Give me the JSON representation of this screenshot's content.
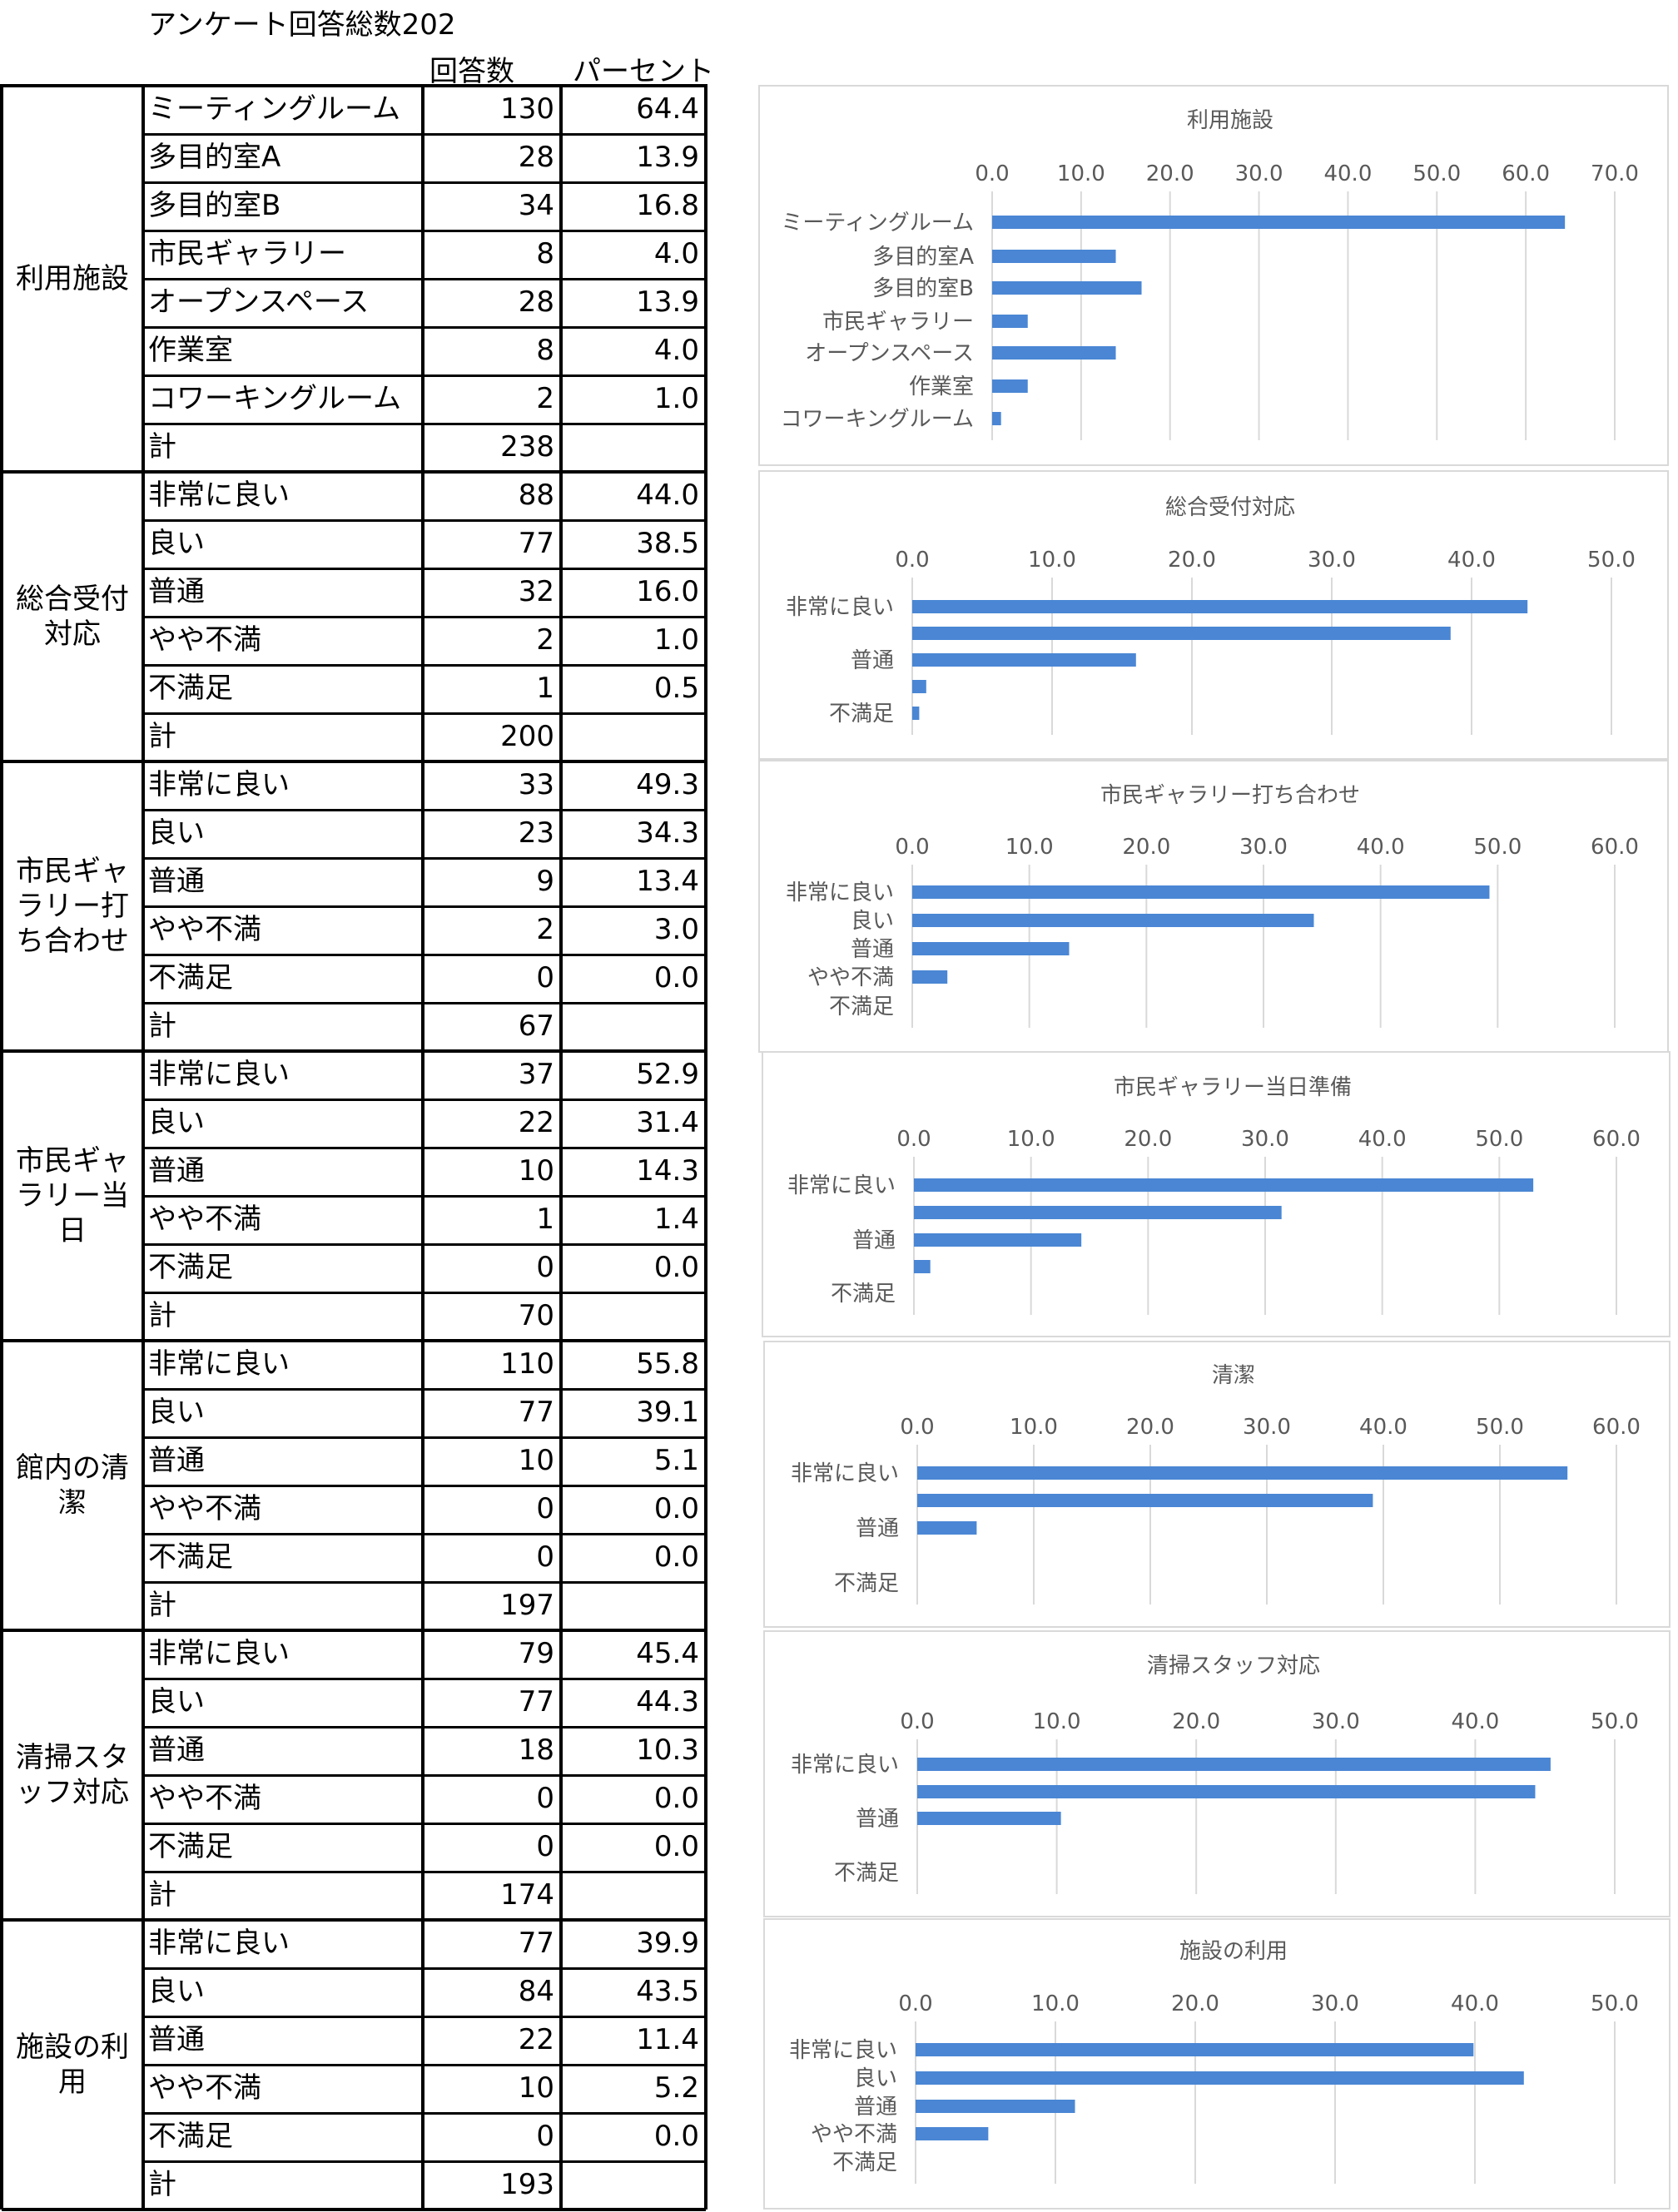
{
  "title": "アンケート回答総数202",
  "table_headers": {
    "count": "回答数",
    "percent": "パーセント"
  },
  "sections": [
    {
      "name": "利用施設",
      "total_label": "計",
      "total": "238",
      "rows": [
        {
          "label": "ミーティングルーム",
          "count": "130",
          "pct": "64.4"
        },
        {
          "label": "多目的室A",
          "count": "28",
          "pct": "13.9"
        },
        {
          "label": "多目的室B",
          "count": "34",
          "pct": "16.8"
        },
        {
          "label": "市民ギャラリー",
          "count": "8",
          "pct": "4.0"
        },
        {
          "label": "オープンスペース",
          "count": "28",
          "pct": "13.9"
        },
        {
          "label": "作業室",
          "count": "8",
          "pct": "4.0"
        },
        {
          "label": "コワーキングルーム",
          "count": "2",
          "pct": "1.0"
        }
      ]
    },
    {
      "name": "総合受付対応",
      "total_label": "計",
      "total": "200",
      "rows": [
        {
          "label": "非常に良い",
          "count": "88",
          "pct": "44.0"
        },
        {
          "label": "良い",
          "count": "77",
          "pct": "38.5"
        },
        {
          "label": "普通",
          "count": "32",
          "pct": "16.0"
        },
        {
          "label": "やや不満",
          "count": "2",
          "pct": "1.0"
        },
        {
          "label": "不満足",
          "count": "1",
          "pct": "0.5"
        }
      ]
    },
    {
      "name": "市民ギャラリー打ち合わせ",
      "total_label": "計",
      "total": "67",
      "rows": [
        {
          "label": "非常に良い",
          "count": "33",
          "pct": "49.3"
        },
        {
          "label": "良い",
          "count": "23",
          "pct": "34.3"
        },
        {
          "label": "普通",
          "count": "9",
          "pct": "13.4"
        },
        {
          "label": "やや不満",
          "count": "2",
          "pct": "3.0"
        },
        {
          "label": "不満足",
          "count": "0",
          "pct": "0.0"
        }
      ]
    },
    {
      "name": "市民ギャラリー当日",
      "total_label": "計",
      "total": "70",
      "rows": [
        {
          "label": "非常に良い",
          "count": "37",
          "pct": "52.9"
        },
        {
          "label": "良い",
          "count": "22",
          "pct": "31.4"
        },
        {
          "label": "普通",
          "count": "10",
          "pct": "14.3"
        },
        {
          "label": "やや不満",
          "count": "1",
          "pct": "1.4"
        },
        {
          "label": "不満足",
          "count": "0",
          "pct": "0.0"
        }
      ]
    },
    {
      "name": "館内の清潔",
      "total_label": "計",
      "total": "197",
      "rows": [
        {
          "label": "非常に良い",
          "count": "110",
          "pct": "55.8"
        },
        {
          "label": "良い",
          "count": "77",
          "pct": "39.1"
        },
        {
          "label": "普通",
          "count": "10",
          "pct": "5.1"
        },
        {
          "label": "やや不満",
          "count": "0",
          "pct": "0.0"
        },
        {
          "label": "不満足",
          "count": "0",
          "pct": "0.0"
        }
      ]
    },
    {
      "name": "清掃スタッフ対応",
      "total_label": "計",
      "total": "174",
      "rows": [
        {
          "label": "非常に良い",
          "count": "79",
          "pct": "45.4"
        },
        {
          "label": "良い",
          "count": "77",
          "pct": "44.3"
        },
        {
          "label": "普通",
          "count": "18",
          "pct": "10.3"
        },
        {
          "label": "やや不満",
          "count": "0",
          "pct": "0.0"
        },
        {
          "label": "不満足",
          "count": "0",
          "pct": "0.0"
        }
      ]
    },
    {
      "name": "施設の利用",
      "total_label": "計",
      "total": "193",
      "rows": [
        {
          "label": "非常に良い",
          "count": "77",
          "pct": "39.9"
        },
        {
          "label": "良い",
          "count": "84",
          "pct": "43.5"
        },
        {
          "label": "普通",
          "count": "22",
          "pct": "11.4"
        },
        {
          "label": "やや不満",
          "count": "10",
          "pct": "5.2"
        },
        {
          "label": "不満足",
          "count": "0",
          "pct": "0.0"
        }
      ]
    }
  ],
  "chart_data": [
    {
      "type": "bar",
      "orientation": "horizontal",
      "title": "利用施設",
      "categories": [
        "ミーティングルーム",
        "多目的室A",
        "多目的室B",
        "市民ギャラリー",
        "オープンスペース",
        "作業室",
        "コワーキングルーム"
      ],
      "shown_labels": [
        "ミーティングルーム",
        "多目的室A",
        "多目的室B",
        "市民ギャラリー",
        "オープンスペース",
        "作業室",
        "コワーキングルーム"
      ],
      "values": [
        64.4,
        13.9,
        16.8,
        4.0,
        13.9,
        4.0,
        1.0
      ],
      "xlim": [
        0,
        70
      ],
      "ticks": [
        "0.0",
        "10.0",
        "20.0",
        "30.0",
        "40.0",
        "50.0",
        "60.0",
        "70.0"
      ],
      "grid": true,
      "color": "#4a86d4"
    },
    {
      "type": "bar",
      "orientation": "horizontal",
      "title": "総合受付対応",
      "categories": [
        "非常に良い",
        "良い",
        "普通",
        "やや不満",
        "不満足"
      ],
      "shown_labels": [
        "非常に良い",
        "",
        "普通",
        "",
        "不満足"
      ],
      "values": [
        44.0,
        38.5,
        16.0,
        1.0,
        0.5
      ],
      "xlim": [
        0,
        50
      ],
      "ticks": [
        "0.0",
        "10.0",
        "20.0",
        "30.0",
        "40.0",
        "50.0"
      ],
      "grid": true,
      "color": "#4a86d4"
    },
    {
      "type": "bar",
      "orientation": "horizontal",
      "title": "市民ギャラリー打ち合わせ",
      "categories": [
        "非常に良い",
        "良い",
        "普通",
        "やや不満",
        "不満足"
      ],
      "shown_labels": [
        "非常に良い",
        "良い",
        "普通",
        "やや不満",
        "不満足"
      ],
      "values": [
        49.3,
        34.3,
        13.4,
        3.0,
        0.0
      ],
      "xlim": [
        0,
        60
      ],
      "ticks": [
        "0.0",
        "10.0",
        "20.0",
        "30.0",
        "40.0",
        "50.0",
        "60.0"
      ],
      "grid": true,
      "color": "#4a86d4"
    },
    {
      "type": "bar",
      "orientation": "horizontal",
      "title": "市民ギャラリー当日準備",
      "categories": [
        "非常に良い",
        "良い",
        "普通",
        "やや不満",
        "不満足"
      ],
      "shown_labels": [
        "非常に良い",
        "",
        "普通",
        "",
        "不満足"
      ],
      "values": [
        52.9,
        31.4,
        14.3,
        1.4,
        0.0
      ],
      "xlim": [
        0,
        60
      ],
      "ticks": [
        "0.0",
        "10.0",
        "20.0",
        "30.0",
        "40.0",
        "50.0",
        "60.0"
      ],
      "grid": true,
      "color": "#4a86d4"
    },
    {
      "type": "bar",
      "orientation": "horizontal",
      "title": "清潔",
      "categories": [
        "非常に良い",
        "良い",
        "普通",
        "やや不満",
        "不満足"
      ],
      "shown_labels": [
        "非常に良い",
        "",
        "普通",
        "",
        "不満足"
      ],
      "values": [
        55.8,
        39.1,
        5.1,
        0.0,
        0.0
      ],
      "xlim": [
        0,
        60
      ],
      "ticks": [
        "0.0",
        "10.0",
        "20.0",
        "30.0",
        "40.0",
        "50.0",
        "60.0"
      ],
      "grid": true,
      "color": "#4a86d4"
    },
    {
      "type": "bar",
      "orientation": "horizontal",
      "title": "清掃スタッフ対応",
      "categories": [
        "非常に良い",
        "良い",
        "普通",
        "やや不満",
        "不満足"
      ],
      "shown_labels": [
        "非常に良い",
        "",
        "普通",
        "",
        "不満足"
      ],
      "values": [
        45.4,
        44.3,
        10.3,
        0.0,
        0.0
      ],
      "xlim": [
        0,
        50
      ],
      "ticks": [
        "0.0",
        "10.0",
        "20.0",
        "30.0",
        "40.0",
        "50.0"
      ],
      "grid": true,
      "color": "#4a86d4"
    },
    {
      "type": "bar",
      "orientation": "horizontal",
      "title": "施設の利用",
      "categories": [
        "非常に良い",
        "良い",
        "普通",
        "やや不満",
        "不満足"
      ],
      "shown_labels": [
        "非常に良い",
        "良い",
        "普通",
        "やや不満",
        "不満足"
      ],
      "values": [
        39.9,
        43.5,
        11.4,
        5.2,
        0.0
      ],
      "xlim": [
        0,
        50
      ],
      "ticks": [
        "0.0",
        "10.0",
        "20.0",
        "30.0",
        "40.0",
        "50.0"
      ],
      "grid": true,
      "color": "#4a86d4"
    }
  ]
}
